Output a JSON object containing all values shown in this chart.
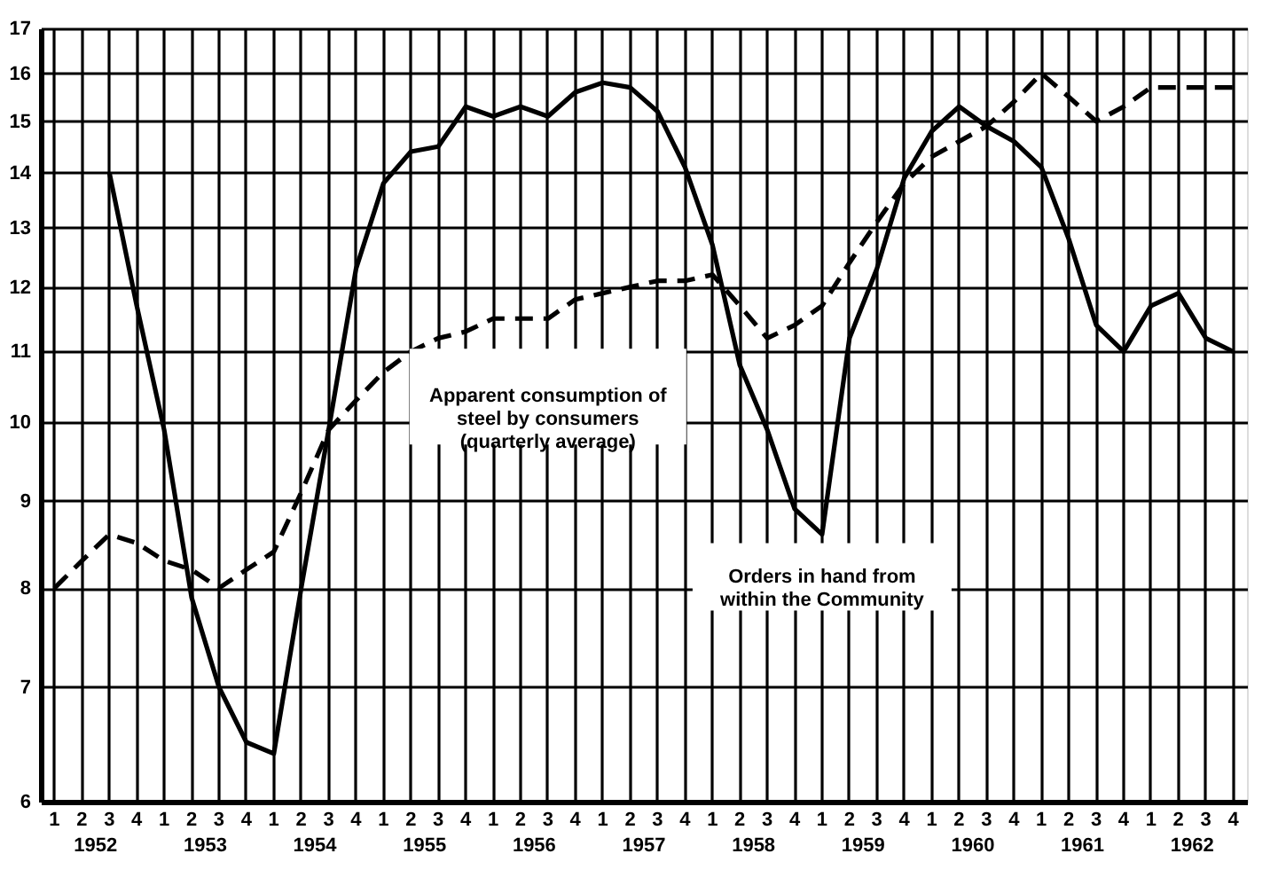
{
  "chart_data": {
    "type": "line",
    "ylim": [
      6,
      17
    ],
    "log": "y",
    "grid": true,
    "yticks": [
      6,
      7,
      8,
      9,
      10,
      11,
      12,
      13,
      14,
      15,
      16,
      17
    ],
    "categories": [
      "1",
      "2",
      "3",
      "4",
      "1",
      "2",
      "3",
      "4",
      "1",
      "2",
      "3",
      "4",
      "1",
      "2",
      "3",
      "4",
      "1",
      "2",
      "3",
      "4",
      "1",
      "2",
      "3",
      "4",
      "1",
      "2",
      "3",
      "4",
      "1",
      "2",
      "3",
      "4",
      "1",
      "2",
      "3",
      "4",
      "1",
      "2",
      "3",
      "4",
      "1",
      "2",
      "3",
      "4"
    ],
    "annotations": [
      "1952",
      "1953",
      "1954",
      "1955",
      "1956",
      "1957",
      "1958",
      "1959",
      "1960",
      "1961",
      "1962"
    ],
    "series": [
      {
        "name": "Apparent consumption of\nsteel by consumers\n(quarterly average)",
        "color": "#000000",
        "line_style": "dashed",
        "values": [
          8.0,
          8.3,
          8.6,
          8.5,
          8.3,
          8.2,
          8.0,
          8.2,
          8.4,
          9.1,
          9.9,
          10.3,
          10.7,
          11.0,
          11.2,
          11.3,
          11.5,
          11.5,
          11.5,
          11.8,
          11.9,
          12.0,
          12.1,
          12.1,
          12.2,
          11.7,
          11.2,
          11.4,
          11.7,
          12.4,
          13.1,
          13.8,
          14.3,
          14.6,
          14.9,
          15.4,
          16.0,
          15.5,
          15.0,
          15.3,
          15.7,
          15.7,
          15.7,
          15.7
        ]
      },
      {
        "name": "Orders in hand from\nwithin the Community",
        "color": "#000000",
        "line_style": "solid",
        "values": [
          null,
          null,
          14.0,
          11.7,
          9.9,
          7.9,
          7.0,
          6.5,
          6.4,
          8.0,
          9.9,
          12.3,
          13.8,
          14.4,
          14.5,
          15.3,
          15.1,
          15.3,
          15.1,
          15.6,
          15.8,
          15.7,
          15.2,
          14.1,
          12.7,
          10.8,
          9.9,
          8.9,
          8.6,
          11.2,
          12.3,
          13.9,
          14.8,
          15.3,
          14.9,
          14.6,
          14.1,
          12.8,
          11.4,
          11.0,
          11.7,
          11.9,
          11.2,
          11.0
        ]
      }
    ]
  }
}
